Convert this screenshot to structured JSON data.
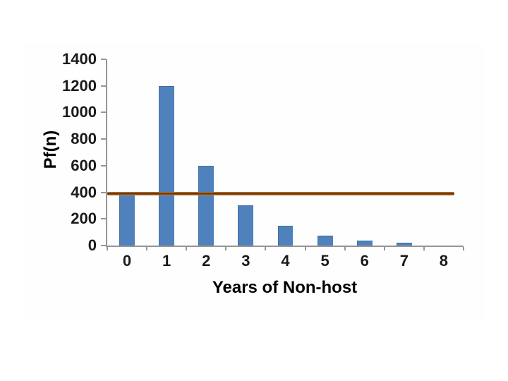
{
  "chart_data": {
    "type": "bar",
    "categories": [
      "0",
      "1",
      "2",
      "3",
      "4",
      "5",
      "6",
      "7",
      "8"
    ],
    "values": [
      380,
      1200,
      600,
      300,
      150,
      75,
      38,
      19,
      0
    ],
    "xlabel": "Years of Non-host",
    "ylabel": "Pf(n)",
    "ylim": [
      0,
      1400
    ],
    "ytick_step": 200,
    "ytick_labels": [
      "0",
      "200",
      "400",
      "600",
      "800",
      "1000",
      "1200",
      "1400"
    ],
    "grid": false,
    "legend": "none",
    "reference_line": {
      "value": 390,
      "color": "#7d3b00"
    },
    "bar_color": "#4F81BD",
    "bar_border_color": "#41719C",
    "axis_color": "#969696",
    "text_color": "#1a1a1a"
  }
}
